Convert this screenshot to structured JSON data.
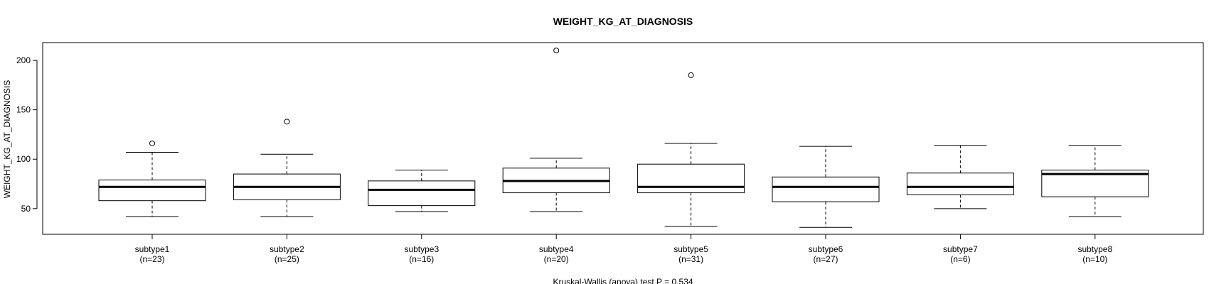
{
  "chart_data": {
    "type": "boxplot",
    "title": "WEIGHT_KG_AT_DIAGNOSIS",
    "ylabel": "WEIGHT_KG_AT_DIAGNOSIS",
    "xlabel": "Kruskal-Wallis (anova) test P = 0.534",
    "ylim": [
      24,
      218
    ],
    "yticks": [
      50,
      100,
      150,
      200
    ],
    "categories": [
      {
        "name": "subtype1",
        "n": "(n=23)",
        "whisker_low": 42,
        "q1": 58,
        "median": 72,
        "q3": 79,
        "whisker_high": 107,
        "outliers": [
          116
        ]
      },
      {
        "name": "subtype2",
        "n": "(n=25)",
        "whisker_low": 42,
        "q1": 59,
        "median": 72,
        "q3": 85,
        "whisker_high": 105,
        "outliers": [
          138
        ]
      },
      {
        "name": "subtype3",
        "n": "(n=16)",
        "whisker_low": 47,
        "q1": 53,
        "median": 69,
        "q3": 78,
        "whisker_high": 89,
        "outliers": []
      },
      {
        "name": "subtype4",
        "n": "(n=20)",
        "whisker_low": 47,
        "q1": 66,
        "median": 78,
        "q3": 91,
        "whisker_high": 101,
        "outliers": [
          210
        ]
      },
      {
        "name": "subtype5",
        "n": "(n=31)",
        "whisker_low": 32,
        "q1": 66,
        "median": 72,
        "q3": 95,
        "whisker_high": 116,
        "outliers": [
          185
        ]
      },
      {
        "name": "subtype6",
        "n": "(n=27)",
        "whisker_low": 31,
        "q1": 57,
        "median": 72,
        "q3": 82,
        "whisker_high": 113,
        "outliers": []
      },
      {
        "name": "subtype7",
        "n": "(n=6)",
        "whisker_low": 50,
        "q1": 64,
        "median": 72,
        "q3": 86,
        "whisker_high": 114,
        "outliers": []
      },
      {
        "name": "subtype8",
        "n": "(n=10)",
        "whisker_low": 42,
        "q1": 62,
        "median": 85,
        "q3": 89,
        "whisker_high": 114,
        "outliers": []
      }
    ]
  }
}
